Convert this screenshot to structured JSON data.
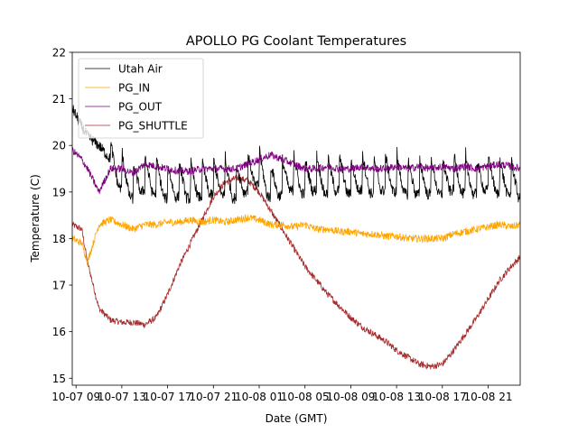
{
  "chart_data": {
    "type": "line",
    "title": "APOLLO PG Coolant Temperatures",
    "xlabel": "Date (GMT)",
    "ylabel": "Temperature (C)",
    "x_unit": "hours since 10-07 09:00 GMT",
    "xlim": [
      -0.33,
      38.8
    ],
    "ylim": [
      14.85,
      22
    ],
    "yticks": [
      15,
      16,
      17,
      18,
      19,
      20,
      21,
      22
    ],
    "xticks": [
      {
        "value": 0,
        "label": "10-07 09"
      },
      {
        "value": 4,
        "label": "10-07 13"
      },
      {
        "value": 8,
        "label": "10-07 17"
      },
      {
        "value": 12,
        "label": "10-07 21"
      },
      {
        "value": 16,
        "label": "10-08 01"
      },
      {
        "value": 20,
        "label": "10-08 05"
      },
      {
        "value": 24,
        "label": "10-08 09"
      },
      {
        "value": 28,
        "label": "10-08 13"
      },
      {
        "value": 32,
        "label": "10-08 17"
      },
      {
        "value": 36,
        "label": "10-08 21"
      }
    ],
    "grid": false,
    "legend_position": "top-left",
    "x": [
      -0.33,
      0.5,
      1,
      2,
      3,
      4,
      5,
      6,
      7,
      8,
      9,
      10,
      11,
      12,
      13,
      14,
      15,
      16,
      17,
      18,
      19,
      20,
      21,
      22,
      23,
      24,
      25,
      26,
      27,
      28,
      29,
      30,
      31,
      32,
      33,
      34,
      35,
      36,
      37,
      38,
      38.8
    ],
    "series": [
      {
        "name": "Utah Air",
        "color": "#000000",
        "values": [
          20.8,
          20.4,
          20.2,
          20.0,
          19.7,
          19.4,
          19.2,
          19.4,
          19.3,
          19.2,
          19.25,
          19.2,
          19.25,
          19.3,
          19.3,
          19.2,
          19.4,
          19.5,
          19.2,
          19.3,
          19.4,
          19.3,
          19.4,
          19.3,
          19.4,
          19.3,
          19.4,
          19.3,
          19.4,
          19.35,
          19.3,
          19.3,
          19.3,
          19.3,
          19.4,
          19.3,
          19.3,
          19.4,
          19.3,
          19.3,
          19.2
        ]
      },
      {
        "name": "PG_IN",
        "color": "#ffa500",
        "values": [
          18.0,
          17.9,
          17.5,
          18.3,
          18.4,
          18.3,
          18.2,
          18.3,
          18.3,
          18.35,
          18.35,
          18.4,
          18.35,
          18.4,
          18.35,
          18.4,
          18.45,
          18.4,
          18.3,
          18.3,
          18.25,
          18.3,
          18.2,
          18.2,
          18.15,
          18.15,
          18.1,
          18.1,
          18.05,
          18.05,
          18.0,
          18.0,
          18.0,
          18.0,
          18.1,
          18.15,
          18.2,
          18.25,
          18.3,
          18.25,
          18.3
        ]
      },
      {
        "name": "PG_OUT",
        "color": "#800080",
        "values": [
          19.9,
          19.7,
          19.5,
          19.0,
          19.5,
          19.5,
          19.4,
          19.6,
          19.55,
          19.5,
          19.45,
          19.45,
          19.5,
          19.5,
          19.5,
          19.5,
          19.6,
          19.7,
          19.8,
          19.7,
          19.6,
          19.5,
          19.5,
          19.55,
          19.5,
          19.5,
          19.55,
          19.5,
          19.5,
          19.55,
          19.5,
          19.55,
          19.5,
          19.55,
          19.5,
          19.55,
          19.5,
          19.55,
          19.6,
          19.55,
          19.5
        ]
      },
      {
        "name": "PG_SHUTTLE",
        "color": "#a52a2a",
        "values": [
          18.3,
          18.2,
          17.5,
          16.5,
          16.25,
          16.2,
          16.2,
          16.15,
          16.3,
          16.8,
          17.4,
          17.9,
          18.4,
          18.9,
          19.2,
          19.3,
          19.25,
          19.0,
          18.6,
          18.2,
          17.8,
          17.4,
          17.1,
          16.8,
          16.55,
          16.3,
          16.1,
          15.95,
          15.8,
          15.6,
          15.45,
          15.3,
          15.25,
          15.3,
          15.6,
          15.95,
          16.3,
          16.7,
          17.1,
          17.4,
          17.6
        ]
      }
    ]
  }
}
